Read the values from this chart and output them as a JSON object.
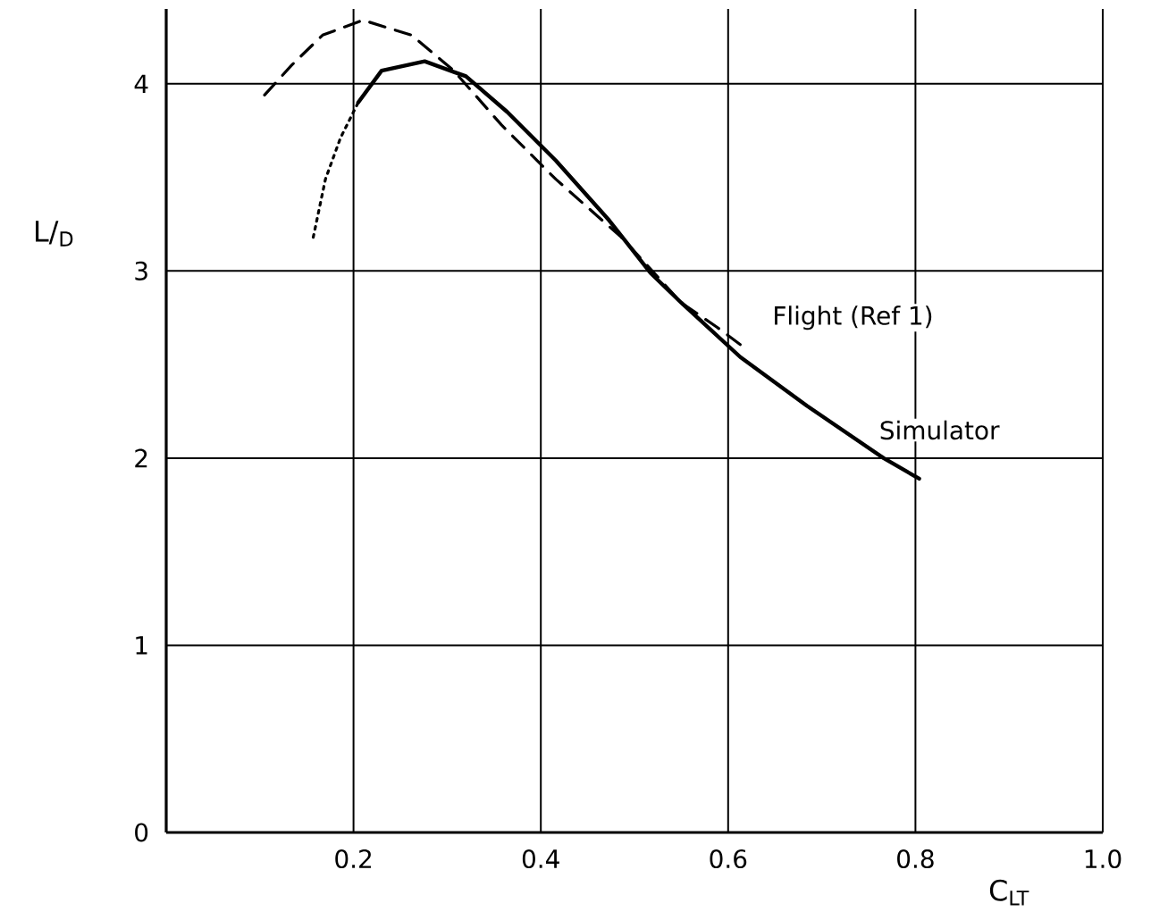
{
  "chart_data": {
    "type": "line",
    "xlabel": "C$_{LT}$",
    "ylabel": "L/$_{D}$",
    "xlim": [
      0,
      1.0
    ],
    "ylim": [
      0,
      4.4
    ],
    "xticks": [
      0.2,
      0.4,
      0.6,
      0.8,
      {
        "value": 1.0,
        "label": "1.0"
      }
    ],
    "yticks": [
      0,
      1,
      2,
      3,
      4
    ],
    "grid": true,
    "marker": "none",
    "series": [
      {
        "name": "Flight (Ref 1)",
        "color": "#000000",
        "line_style": "dashed",
        "x": [
          0.105,
          0.134,
          0.167,
          0.21,
          0.262,
          0.307,
          0.358,
          0.416,
          0.486,
          0.55,
          0.588,
          0.62
        ],
        "values": [
          3.94,
          4.1,
          4.26,
          4.34,
          4.26,
          4.07,
          3.78,
          3.49,
          3.18,
          2.83,
          2.7,
          2.58
        ]
      },
      {
        "name": "Simulator",
        "color": "#000000",
        "line_style": "solid",
        "x": [
          0.205,
          0.23,
          0.276,
          0.32,
          0.364,
          0.416,
          0.473,
          0.517,
          0.55,
          0.613,
          0.684,
          0.766,
          0.804
        ],
        "values": [
          3.9,
          4.07,
          4.12,
          4.04,
          3.85,
          3.59,
          3.27,
          2.99,
          2.83,
          2.54,
          2.28,
          2.0,
          1.89
        ]
      },
      {
        "color": "#000000",
        "line_style": "dotted",
        "x": [
          0.157,
          0.17,
          0.186,
          0.205
        ],
        "values": [
          3.18,
          3.49,
          3.71,
          3.9
        ]
      }
    ]
  }
}
